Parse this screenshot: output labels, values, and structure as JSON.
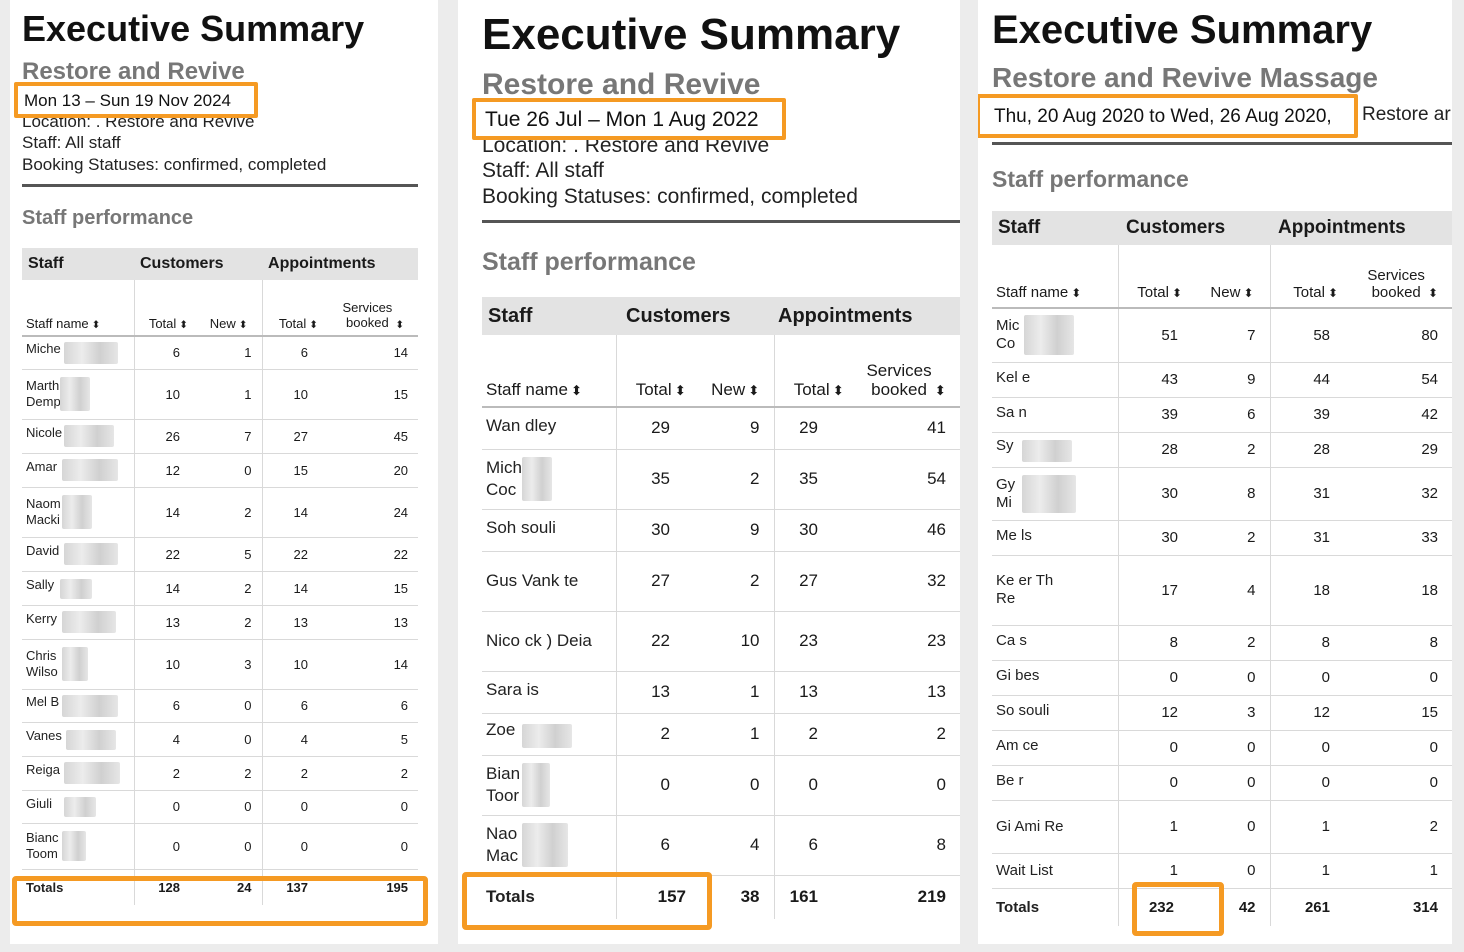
{
  "accent_color": "#f59a23",
  "panel1": {
    "title": "Executive Summary",
    "subtitle": "Restore and Revive",
    "date_range": "Mon 13 – Sun 19 Nov 2024",
    "location": "Location: . Restore and Revive",
    "staff": "Staff: All staff",
    "statuses": "Booking Statuses: confirmed, completed",
    "section": "Staff performance",
    "group_headers": [
      "Staff",
      "Customers",
      "Appointments"
    ],
    "col_headers": [
      "Staff name",
      "Total",
      "New",
      "Total",
      "Services",
      "booked"
    ],
    "rows": [
      {
        "name": "Miche",
        "total": "6",
        "new": "1",
        "appts": "6",
        "services": "14"
      },
      {
        "name": "Marth Demp",
        "total": "10",
        "new": "1",
        "appts": "10",
        "services": "15"
      },
      {
        "name": "Nicole",
        "total": "26",
        "new": "7",
        "appts": "27",
        "services": "45"
      },
      {
        "name": "Amar",
        "total": "12",
        "new": "0",
        "appts": "15",
        "services": "20"
      },
      {
        "name": "Naom Macki",
        "total": "14",
        "new": "2",
        "appts": "14",
        "services": "24"
      },
      {
        "name": "David",
        "total": "22",
        "new": "5",
        "appts": "22",
        "services": "22"
      },
      {
        "name": "Sally",
        "total": "14",
        "new": "2",
        "appts": "14",
        "services": "15"
      },
      {
        "name": "Kerry",
        "total": "13",
        "new": "2",
        "appts": "13",
        "services": "13"
      },
      {
        "name": "Chris Wilso",
        "total": "10",
        "new": "3",
        "appts": "10",
        "services": "14"
      },
      {
        "name": "Mel B",
        "total": "6",
        "new": "0",
        "appts": "6",
        "services": "6"
      },
      {
        "name": "Vanes",
        "total": "4",
        "new": "0",
        "appts": "4",
        "services": "5"
      },
      {
        "name": "Reiga",
        "total": "2",
        "new": "2",
        "appts": "2",
        "services": "2"
      },
      {
        "name": "Giuli",
        "total": "0",
        "new": "0",
        "appts": "0",
        "services": "0"
      },
      {
        "name": "Bianc Toom",
        "total": "0",
        "new": "0",
        "appts": "0",
        "services": "0"
      }
    ],
    "totals": {
      "label": "Totals",
      "total": "128",
      "new": "24",
      "appts": "137",
      "services": "195"
    }
  },
  "panel2": {
    "title": "Executive Summary",
    "subtitle": "Restore and Revive",
    "date_range": "Tue 26 Jul – Mon 1 Aug 2022",
    "location": "Location: . Restore and Revive",
    "staff": "Staff: All staff",
    "statuses": "Booking Statuses: confirmed, completed",
    "section": "Staff performance",
    "group_headers": [
      "Staff",
      "Customers",
      "Appointments"
    ],
    "col_headers": [
      "Staff name",
      "Total",
      "New",
      "Total",
      "Services",
      "booked"
    ],
    "rows": [
      {
        "name": "Wan dley",
        "total": "29",
        "new": "9",
        "appts": "29",
        "services": "41"
      },
      {
        "name": "Mich Coc",
        "total": "35",
        "new": "2",
        "appts": "35",
        "services": "54"
      },
      {
        "name": "Soh souli",
        "total": "30",
        "new": "9",
        "appts": "30",
        "services": "46"
      },
      {
        "name": "Gus Vank te",
        "total": "27",
        "new": "2",
        "appts": "27",
        "services": "32"
      },
      {
        "name": "Nico ck ) Deia",
        "total": "22",
        "new": "10",
        "appts": "23",
        "services": "23"
      },
      {
        "name": "Sara is",
        "total": "13",
        "new": "1",
        "appts": "13",
        "services": "13"
      },
      {
        "name": "Zoe",
        "total": "2",
        "new": "1",
        "appts": "2",
        "services": "2"
      },
      {
        "name": "Bian Toor",
        "total": "0",
        "new": "0",
        "appts": "0",
        "services": "0"
      },
      {
        "name": "Nao Mac",
        "total": "6",
        "new": "4",
        "appts": "6",
        "services": "8"
      }
    ],
    "totals": {
      "label": "Totals",
      "total": "157",
      "new": "38",
      "appts": "161",
      "services": "219"
    }
  },
  "panel3": {
    "title": "Executive Summary",
    "subtitle": "Restore and Revive Massage",
    "date_range": "Thu, 20 Aug 2020 to Wed, 26 Aug 2020,",
    "date_suffix": "Restore ar",
    "section": "Staff performance",
    "group_headers": [
      "Staff",
      "Customers",
      "Appointments"
    ],
    "col_headers": [
      "Staff name",
      "Total",
      "New",
      "Total",
      "Services",
      "booked"
    ],
    "rows": [
      {
        "name": "Mic Co",
        "total": "51",
        "new": "7",
        "appts": "58",
        "services": "80"
      },
      {
        "name": "Kel e",
        "total": "43",
        "new": "9",
        "appts": "44",
        "services": "54"
      },
      {
        "name": "Sa n",
        "total": "39",
        "new": "6",
        "appts": "39",
        "services": "42"
      },
      {
        "name": "Sy",
        "total": "28",
        "new": "2",
        "appts": "28",
        "services": "29"
      },
      {
        "name": "Gy Mi",
        "total": "30",
        "new": "8",
        "appts": "31",
        "services": "32"
      },
      {
        "name": "Me ls",
        "total": "30",
        "new": "2",
        "appts": "31",
        "services": "33"
      },
      {
        "name": "Ke er Th Re",
        "total": "17",
        "new": "4",
        "appts": "18",
        "services": "18"
      },
      {
        "name": "Ca s",
        "total": "8",
        "new": "2",
        "appts": "8",
        "services": "8"
      },
      {
        "name": "Gi bes",
        "total": "0",
        "new": "0",
        "appts": "0",
        "services": "0"
      },
      {
        "name": "So souli",
        "total": "12",
        "new": "3",
        "appts": "12",
        "services": "15"
      },
      {
        "name": "Am ce",
        "total": "0",
        "new": "0",
        "appts": "0",
        "services": "0"
      },
      {
        "name": "Be r",
        "total": "0",
        "new": "0",
        "appts": "0",
        "services": "0"
      },
      {
        "name": "Gi Ami Re",
        "total": "1",
        "new": "0",
        "appts": "1",
        "services": "2"
      },
      {
        "name": "Wait List",
        "total": "1",
        "new": "0",
        "appts": "1",
        "services": "1"
      }
    ],
    "totals": {
      "label": "Totals",
      "total": "232",
      "new": "42",
      "appts": "261",
      "services": "314"
    }
  }
}
